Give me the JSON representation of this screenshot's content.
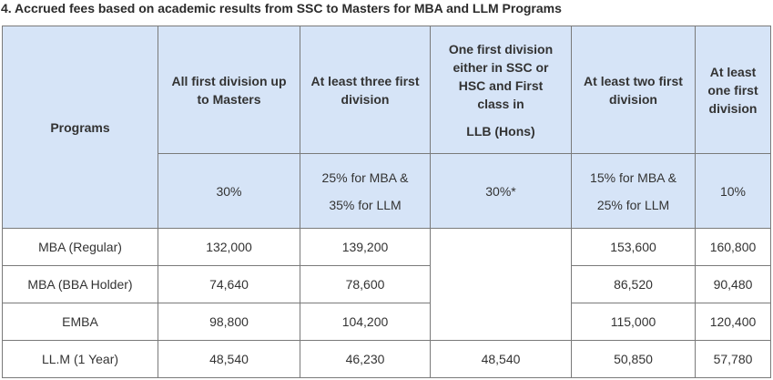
{
  "title": "4. Accrued fees based on academic results from SSC to Masters for MBA and LLM Programs",
  "header": {
    "programs_label": "Programs",
    "columns": [
      {
        "title_lines": [
          "All first division up",
          "to Masters"
        ],
        "rate_lines": [
          "30%"
        ]
      },
      {
        "title_lines": [
          "At least three first",
          "division"
        ],
        "rate_lines": [
          "25% for MBA &",
          "35% for LLM"
        ]
      },
      {
        "title_lines": [
          "One first division",
          "either in SSC or",
          "HSC  and First",
          "class in"
        ],
        "title_extra": "LLB (Hons)",
        "rate_lines": [
          "30%*"
        ]
      },
      {
        "title_lines": [
          "At least two first",
          "division"
        ],
        "rate_lines": [
          "15% for MBA &",
          "25% for LLM"
        ]
      },
      {
        "title_lines": [
          "At least",
          "one first",
          "division"
        ],
        "rate_lines": [
          "10%"
        ]
      }
    ]
  },
  "rows": [
    {
      "program": "MBA (Regular)",
      "values": [
        "132,000",
        "139,200",
        "",
        "153,600",
        "160,800"
      ]
    },
    {
      "program": "MBA (BBA Holder)",
      "values": [
        "74,640",
        "78,600",
        "",
        "86,520",
        "90,480"
      ]
    },
    {
      "program": "EMBA",
      "values": [
        "98,800",
        "104,200",
        "",
        "115,000",
        "120,400"
      ]
    },
    {
      "program": "LL.M  (1 Year)",
      "values": [
        "48,540",
        "46,230",
        "48,540",
        "50,850",
        "57,780"
      ]
    }
  ]
}
